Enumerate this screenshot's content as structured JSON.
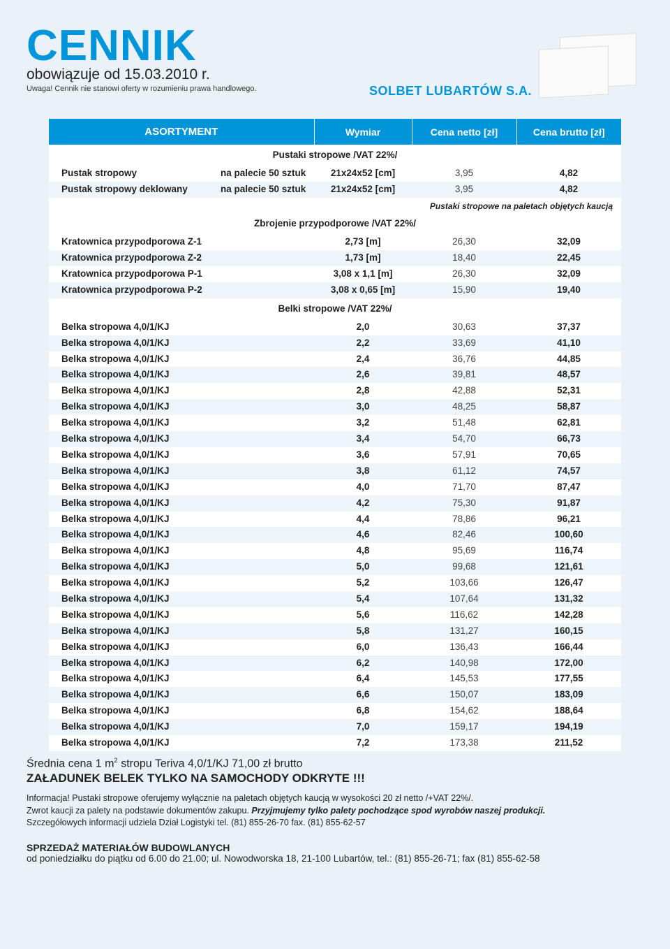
{
  "header": {
    "title": "CENNIK",
    "subtitle": "obowiązuje od 15.03.2010 r.",
    "warning": "Uwaga! Cennik nie stanowi oferty w rozumieniu prawa handlowego.",
    "company": "SOLBET LUBARTÓW S.A."
  },
  "columns": {
    "asortyment": "ASORTYMENT",
    "wymiar": "Wymiar",
    "netto": "Cena netto [zł]",
    "brutto": "Cena brutto [zł]"
  },
  "section1": {
    "title": "Pustaki stropowe /VAT 22%/",
    "rows": [
      {
        "name": "Pustak stropowy",
        "note": "na palecie 50 sztuk",
        "dim": "21x24x52 [cm]",
        "net": "3,95",
        "gross": "4,82"
      },
      {
        "name": "Pustak stropowy deklowany",
        "note": "na palecie 50 sztuk",
        "dim": "21x24x52 [cm]",
        "net": "3,95",
        "gross": "4,82"
      }
    ],
    "footnote": "Pustaki stropowe na paletach objętych kaucją"
  },
  "section2": {
    "title": "Zbrojenie przypodporowe /VAT 22%/",
    "rows": [
      {
        "name": "Kratownica przypodporowa Z-1",
        "dim": "2,73 [m]",
        "net": "26,30",
        "gross": "32,09"
      },
      {
        "name": "Kratownica przypodporowa Z-2",
        "dim": "1,73 [m]",
        "net": "18,40",
        "gross": "22,45"
      },
      {
        "name": "Kratownica przypodporowa P-1",
        "dim": "3,08 x 1,1 [m]",
        "net": "26,30",
        "gross": "32,09"
      },
      {
        "name": "Kratownica przypodporowa P-2",
        "dim": "3,08 x 0,65 [m]",
        "net": "15,90",
        "gross": "19,40"
      }
    ]
  },
  "section3": {
    "title": "Belki stropowe /VAT 22%/",
    "rows": [
      {
        "name": "Belka stropowa 4,0/1/KJ",
        "dim": "2,0",
        "net": "30,63",
        "gross": "37,37"
      },
      {
        "name": "Belka stropowa 4,0/1/KJ",
        "dim": "2,2",
        "net": "33,69",
        "gross": "41,10"
      },
      {
        "name": "Belka stropowa 4,0/1/KJ",
        "dim": "2,4",
        "net": "36,76",
        "gross": "44,85"
      },
      {
        "name": "Belka stropowa 4,0/1/KJ",
        "dim": "2,6",
        "net": "39,81",
        "gross": "48,57"
      },
      {
        "name": "Belka stropowa 4,0/1/KJ",
        "dim": "2,8",
        "net": "42,88",
        "gross": "52,31"
      },
      {
        "name": "Belka stropowa 4,0/1/KJ",
        "dim": "3,0",
        "net": "48,25",
        "gross": "58,87"
      },
      {
        "name": "Belka stropowa 4,0/1/KJ",
        "dim": "3,2",
        "net": "51,48",
        "gross": "62,81"
      },
      {
        "name": "Belka stropowa 4,0/1/KJ",
        "dim": "3,4",
        "net": "54,70",
        "gross": "66,73"
      },
      {
        "name": "Belka stropowa 4,0/1/KJ",
        "dim": "3,6",
        "net": "57,91",
        "gross": "70,65"
      },
      {
        "name": "Belka stropowa 4,0/1/KJ",
        "dim": "3,8",
        "net": "61,12",
        "gross": "74,57"
      },
      {
        "name": "Belka stropowa 4,0/1/KJ",
        "dim": "4,0",
        "net": "71,70",
        "gross": "87,47"
      },
      {
        "name": "Belka stropowa 4,0/1/KJ",
        "dim": "4,2",
        "net": "75,30",
        "gross": "91,87"
      },
      {
        "name": "Belka stropowa 4,0/1/KJ",
        "dim": "4,4",
        "net": "78,86",
        "gross": "96,21"
      },
      {
        "name": "Belka stropowa 4,0/1/KJ",
        "dim": "4,6",
        "net": "82,46",
        "gross": "100,60"
      },
      {
        "name": "Belka stropowa 4,0/1/KJ",
        "dim": "4,8",
        "net": "95,69",
        "gross": "116,74"
      },
      {
        "name": "Belka stropowa 4,0/1/KJ",
        "dim": "5,0",
        "net": "99,68",
        "gross": "121,61"
      },
      {
        "name": "Belka stropowa 4,0/1/KJ",
        "dim": "5,2",
        "net": "103,66",
        "gross": "126,47"
      },
      {
        "name": "Belka stropowa 4,0/1/KJ",
        "dim": "5,4",
        "net": "107,64",
        "gross": "131,32"
      },
      {
        "name": "Belka stropowa 4,0/1/KJ",
        "dim": "5,6",
        "net": "116,62",
        "gross": "142,28"
      },
      {
        "name": "Belka stropowa 4,0/1/KJ",
        "dim": "5,8",
        "net": "131,27",
        "gross": "160,15"
      },
      {
        "name": "Belka stropowa 4,0/1/KJ",
        "dim": "6,0",
        "net": "136,43",
        "gross": "166,44"
      },
      {
        "name": "Belka stropowa 4,0/1/KJ",
        "dim": "6,2",
        "net": "140,98",
        "gross": "172,00"
      },
      {
        "name": "Belka stropowa 4,0/1/KJ",
        "dim": "6,4",
        "net": "145,53",
        "gross": "177,55"
      },
      {
        "name": "Belka stropowa 4,0/1/KJ",
        "dim": "6,6",
        "net": "150,07",
        "gross": "183,09"
      },
      {
        "name": "Belka stropowa 4,0/1/KJ",
        "dim": "6,8",
        "net": "154,62",
        "gross": "188,64"
      },
      {
        "name": "Belka stropowa 4,0/1/KJ",
        "dim": "7,0",
        "net": "159,17",
        "gross": "194,19"
      },
      {
        "name": "Belka stropowa 4,0/1/KJ",
        "dim": "7,2",
        "net": "173,38",
        "gross": "211,52"
      }
    ]
  },
  "footer": {
    "avg_price_prefix": "Średnia cena 1 m",
    "avg_price_suffix": " stropu Teriva 4,0/1/KJ  71,00 zł brutto",
    "loading": "ZAŁADUNEK BELEK TYLKO NA SAMOCHODY ODKRYTE !!!",
    "info1": "Informacja! Pustaki stropowe oferujemy wyłącznie na paletach objętych kaucją w wysokości 20 zł netto /+VAT 22%/.",
    "info2a": "Zwrot kaucji za palety na podstawie dokumentów zakupu. ",
    "info2b": "Przyjmujemy tylko palety pochodzące spod wyrobów naszej produkcji.",
    "info3": "Szczegółowych informacji udziela Dział Logistyki tel. (81) 855-26-70 fax. (81) 855-62-57",
    "sales_hdr": "SPRZEDAŻ MATERIAŁÓW BUDOWLANYCH",
    "sales_text": "od poniedziałku do piątku od 6.00 do 21.00; ul. Nowodworska 18, 21-100 Lubartów, tel.: (81) 855-26-71; fax (81) 855-62-58"
  },
  "style": {
    "accent_color": "#0095db",
    "bg_color": "#eaf2f7",
    "row_alt_color": "#eef5fa",
    "row_color": "#ffffff"
  }
}
